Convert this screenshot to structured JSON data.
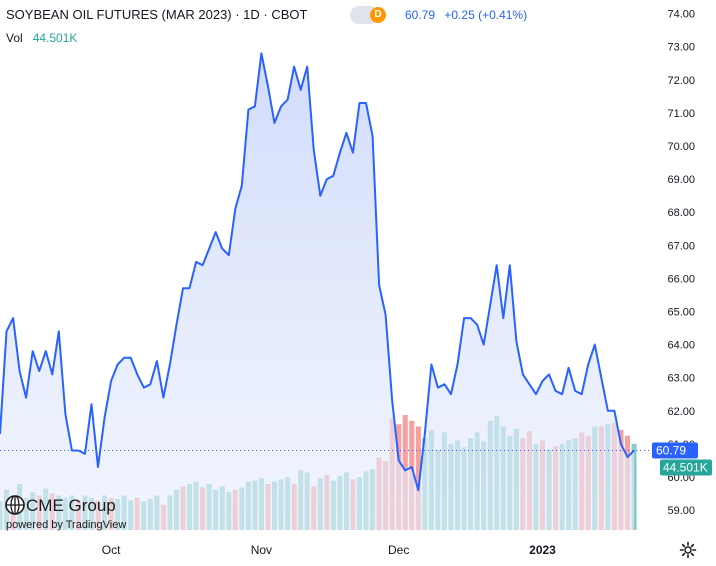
{
  "header": {
    "title": "SOYBEAN OIL FUTURES (MAR 2023) · 1D · CBOT",
    "badge_letter": "D",
    "last": "60.79",
    "change": "+0.25 (+0.41%)",
    "vol_label": "Vol",
    "vol_value": "44.501K"
  },
  "branding": {
    "logo_text": "CME Group",
    "powered_by": "powered by TradingView"
  },
  "colors": {
    "line": "#2962ff",
    "area": "#dfe6fb",
    "vol_up": "#26a69a",
    "vol_down": "#ef5350",
    "price_label_bg": "#2962ff",
    "vol_label_bg": "#26a69a"
  },
  "icons": [
    "settings-gear-icon",
    "cme-globe-icon"
  ],
  "chart_data": {
    "type": "line",
    "title": "SOYBEAN OIL FUTURES (MAR 2023) · 1D · CBOT",
    "xlabel": "",
    "ylabel": "",
    "x_tick_labels": [
      "Oct",
      "Nov",
      "Dec",
      "2023"
    ],
    "y_tick_labels": [
      "59.00",
      "60.00",
      "61.00",
      "62.00",
      "63.00",
      "64.00",
      "65.00",
      "66.00",
      "67.00",
      "68.00",
      "69.00",
      "70.00",
      "71.00",
      "72.00",
      "73.00",
      "74.00"
    ],
    "ylim": [
      58.7,
      74.05
    ],
    "grid": false,
    "last_price_label": "60.79",
    "volume_label": "44.501K",
    "series": [
      {
        "values": [
          61.3,
          64.4,
          64.8,
          63.2,
          62.4,
          63.8,
          63.2,
          63.8,
          63.1,
          64.4,
          61.9,
          60.8,
          60.8,
          60.7,
          62.2,
          60.3,
          61.8,
          62.9,
          63.4,
          63.6,
          63.6,
          63.1,
          62.7,
          62.8,
          63.5,
          62.4,
          63.4,
          64.6,
          65.7,
          65.7,
          66.5,
          66.4,
          66.9,
          67.4,
          66.9,
          66.7,
          68.1,
          68.8,
          71.1,
          71.2,
          72.8,
          71.8,
          70.7,
          71.2,
          71.4,
          72.4,
          71.7,
          72.4,
          69.9,
          68.5,
          69.0,
          69.1,
          69.8,
          70.4,
          69.8,
          71.3,
          71.3,
          70.3,
          65.8,
          64.9,
          62.3,
          60.5,
          60.2,
          60.3,
          59.6,
          61.3,
          63.4,
          62.7,
          62.8,
          62.5,
          63.4,
          64.8,
          64.8,
          64.6,
          64.0,
          65.2,
          66.4,
          64.8,
          66.4,
          64.1,
          63.1,
          62.8,
          62.5,
          62.9,
          63.1,
          62.6,
          62.5,
          63.3,
          62.6,
          62.5,
          63.4,
          64.0,
          63.0,
          62.0,
          62.0,
          61.0,
          60.6,
          60.8
        ]
      }
    ],
    "volume": {
      "colors": [
        "g",
        "g",
        "r",
        "g",
        "g",
        "g",
        "r",
        "g",
        "r",
        "g",
        "g",
        "g",
        "r",
        "g",
        "g",
        "r",
        "g",
        "r",
        "g",
        "g",
        "g",
        "r",
        "g",
        "g",
        "g",
        "r",
        "g",
        "g",
        "r",
        "g",
        "g",
        "r",
        "g",
        "g",
        "g",
        "g",
        "r",
        "g",
        "g",
        "g",
        "g",
        "r",
        "g",
        "g",
        "g",
        "r",
        "g",
        "g",
        "r",
        "g",
        "r",
        "g",
        "g",
        "g",
        "r",
        "g",
        "g",
        "g",
        "r",
        "r",
        "r",
        "r",
        "r",
        "r",
        "r",
        "g",
        "g",
        "g",
        "g",
        "g",
        "g",
        "g",
        "g",
        "g",
        "g",
        "g",
        "g",
        "g",
        "g",
        "g",
        "r",
        "r",
        "g",
        "r",
        "g",
        "r",
        "g",
        "g",
        "g",
        "r",
        "r",
        "g",
        "r",
        "g",
        "r",
        "r",
        "r",
        "g"
      ],
      "heights": [
        0.25,
        0.35,
        0.3,
        0.4,
        0.28,
        0.33,
        0.3,
        0.36,
        0.32,
        0.3,
        0.28,
        0.3,
        0.25,
        0.3,
        0.28,
        0.26,
        0.3,
        0.28,
        0.27,
        0.3,
        0.26,
        0.28,
        0.25,
        0.27,
        0.3,
        0.22,
        0.3,
        0.35,
        0.38,
        0.4,
        0.42,
        0.37,
        0.4,
        0.35,
        0.38,
        0.33,
        0.35,
        0.37,
        0.42,
        0.43,
        0.45,
        0.4,
        0.42,
        0.44,
        0.46,
        0.4,
        0.52,
        0.5,
        0.38,
        0.45,
        0.48,
        0.43,
        0.47,
        0.5,
        0.44,
        0.46,
        0.51,
        0.53,
        0.63,
        0.6,
        0.97,
        0.92,
        1.0,
        0.95,
        0.9,
        0.8,
        0.87,
        0.7,
        0.85,
        0.75,
        0.78,
        0.72,
        0.8,
        0.85,
        0.77,
        0.95,
        0.99,
        0.9,
        0.82,
        0.88,
        0.8,
        0.86,
        0.75,
        0.78,
        0.7,
        0.73,
        0.75,
        0.78,
        0.8,
        0.85,
        0.82,
        0.9,
        0.9,
        0.92,
        0.93,
        0.87,
        0.82,
        0.75
      ]
    }
  }
}
